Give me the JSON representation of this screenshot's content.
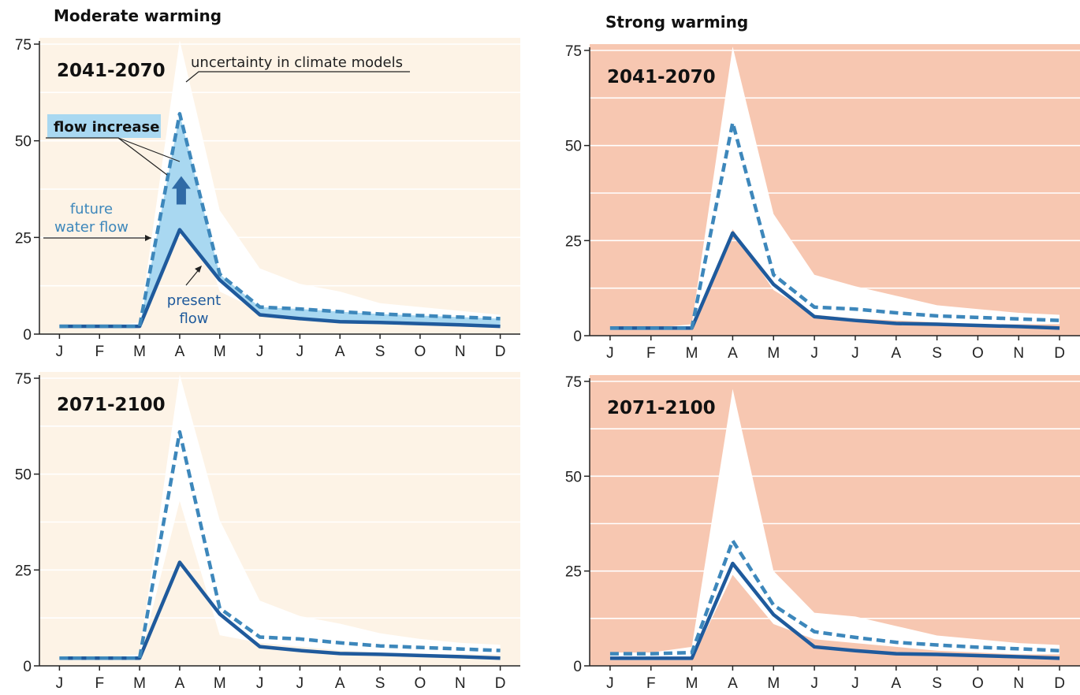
{
  "headings": {
    "moderate": "Moderate warming",
    "strong": "Strong warming"
  },
  "colors": {
    "moderate_bg": "#fdf3e6",
    "strong_bg": "#f7c7b1",
    "present": "#1f5a9c",
    "future": "#3d87bb",
    "increase_fill": "#a9d8f1",
    "uncertainty": "#ffffff"
  },
  "annotations": {
    "uncertainty": "uncertainty in climate models",
    "flow_increase": "flow increase",
    "future_line1": "future",
    "future_line2": "water flow",
    "present_line1": "present",
    "present_line2": "flow"
  },
  "chart_data": [
    {
      "type": "line",
      "panel": "moderate-2041-2070",
      "period_label": "2041-2070",
      "categories": [
        "J",
        "F",
        "M",
        "A",
        "M",
        "J",
        "J",
        "A",
        "S",
        "O",
        "N",
        "D"
      ],
      "ylim": [
        0,
        75
      ],
      "yticks": [
        0,
        25,
        50,
        75
      ],
      "series": [
        {
          "name": "present flow",
          "values": [
            2,
            2,
            2,
            27,
            14,
            5,
            4,
            3.2,
            3,
            2.7,
            2.4,
            2
          ]
        },
        {
          "name": "future water flow",
          "values": [
            2,
            2,
            2,
            57,
            15.5,
            7,
            6.5,
            5.8,
            5.2,
            4.8,
            4.4,
            4
          ]
        }
      ],
      "uncertainty_upper": [
        2,
        2,
        3,
        76,
        32,
        17,
        13,
        11,
        8,
        7,
        6,
        5
      ],
      "uncertainty_lower": [
        1.5,
        1.5,
        1.5,
        44,
        11,
        6,
        5,
        4,
        3.5,
        3,
        3,
        3
      ]
    },
    {
      "type": "line",
      "panel": "strong-2041-2070",
      "period_label": "2041-2070",
      "categories": [
        "J",
        "F",
        "M",
        "A",
        "M",
        "J",
        "J",
        "A",
        "S",
        "O",
        "N",
        "D"
      ],
      "ylim": [
        0,
        75
      ],
      "yticks": [
        0,
        25,
        50,
        75
      ],
      "series": [
        {
          "name": "present flow",
          "values": [
            2,
            2,
            2,
            27,
            13.5,
            5,
            4,
            3.2,
            3,
            2.7,
            2.4,
            2
          ]
        },
        {
          "name": "future water flow",
          "values": [
            2,
            2,
            2,
            56,
            16,
            7.5,
            7,
            6,
            5.2,
            4.8,
            4.4,
            4
          ]
        }
      ],
      "uncertainty_upper": [
        2,
        2,
        3,
        76,
        32,
        16,
        13,
        10.5,
        8,
        7,
        6,
        5.5
      ],
      "uncertainty_lower": [
        1.5,
        1.5,
        1.5,
        28,
        12,
        5.5,
        4.5,
        4,
        3.5,
        3,
        3,
        3
      ]
    },
    {
      "type": "line",
      "panel": "moderate-2071-2100",
      "period_label": "2071-2100",
      "categories": [
        "J",
        "F",
        "M",
        "A",
        "M",
        "J",
        "J",
        "A",
        "S",
        "O",
        "N",
        "D"
      ],
      "ylim": [
        0,
        75
      ],
      "yticks": [
        0,
        25,
        50,
        75
      ],
      "series": [
        {
          "name": "present flow",
          "values": [
            2,
            2,
            2,
            27,
            13.5,
            5,
            4,
            3.2,
            3,
            2.7,
            2.4,
            2
          ]
        },
        {
          "name": "future water flow",
          "values": [
            2,
            2,
            2,
            61,
            15,
            7.5,
            7,
            6,
            5.2,
            4.8,
            4.4,
            4
          ]
        }
      ],
      "uncertainty_upper": [
        2,
        2,
        3,
        76,
        38,
        17,
        13,
        11,
        8.5,
        7,
        6,
        5.5
      ],
      "uncertainty_lower": [
        1.5,
        1.5,
        1.5,
        43,
        8,
        6,
        5,
        4,
        3.5,
        3,
        3,
        3
      ]
    },
    {
      "type": "line",
      "panel": "strong-2071-2100",
      "period_label": "2071-2100",
      "categories": [
        "J",
        "F",
        "M",
        "A",
        "M",
        "J",
        "J",
        "A",
        "S",
        "O",
        "N",
        "D"
      ],
      "ylim": [
        0,
        75
      ],
      "yticks": [
        0,
        25,
        50,
        75
      ],
      "series": [
        {
          "name": "present flow",
          "values": [
            2,
            2,
            2,
            27,
            13.5,
            5,
            4,
            3.2,
            3,
            2.7,
            2.4,
            2
          ]
        },
        {
          "name": "future water flow",
          "values": [
            3.2,
            3.2,
            3.5,
            33,
            16,
            9,
            7.5,
            6.2,
            5.5,
            4.9,
            4.5,
            4
          ]
        }
      ],
      "uncertainty_upper": [
        3.5,
        3.5,
        5,
        73,
        25,
        14,
        13,
        10.5,
        8,
        7,
        6,
        5.5
      ],
      "uncertainty_lower": [
        1.5,
        1.5,
        1.5,
        24,
        11,
        7,
        6,
        5,
        4,
        3.5,
        3,
        3
      ]
    }
  ]
}
